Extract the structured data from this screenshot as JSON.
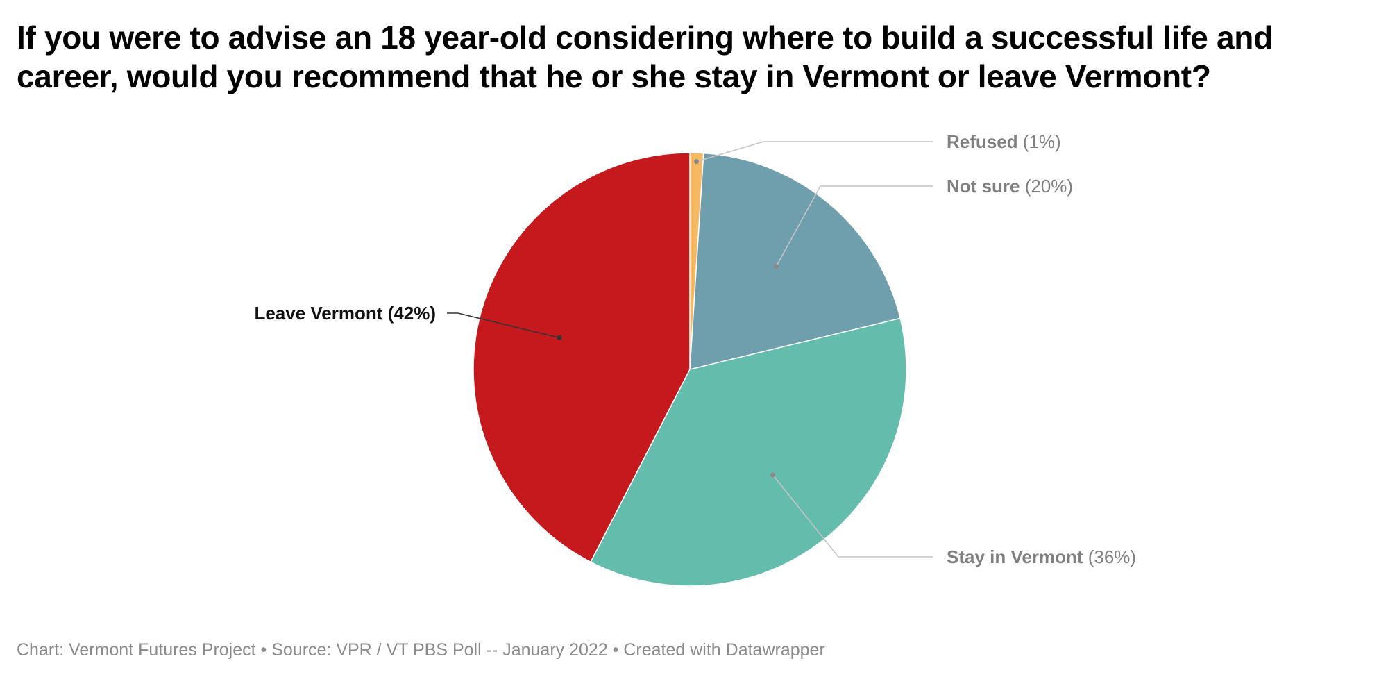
{
  "title": "If you were to advise an 18 year-old considering where to build a successful life and career, would you recommend that he or she stay in Vermont or leave Vermont?",
  "footer": "Chart: Vermont Futures Project • Source: VPR / VT PBS Poll -- January 2022 • Created with Datawrapper",
  "chart_data": {
    "type": "pie",
    "slices": [
      {
        "label": "Refused",
        "value": 1,
        "value_text": "(1%)",
        "color": "#f7b862",
        "label_color": "#7f7f7f"
      },
      {
        "label": "Not sure",
        "value": 20,
        "value_text": "(20%)",
        "color": "#6f9ead",
        "label_color": "#7f7f7f"
      },
      {
        "label": "Stay in Vermont",
        "value": 36,
        "value_text": "(36%)",
        "color": "#63bcac",
        "label_color": "#7f7f7f"
      },
      {
        "label": "Leave Vermont",
        "value": 42,
        "value_text": "(42%)",
        "color": "#c6191d",
        "label_color": "#111111"
      }
    ]
  }
}
